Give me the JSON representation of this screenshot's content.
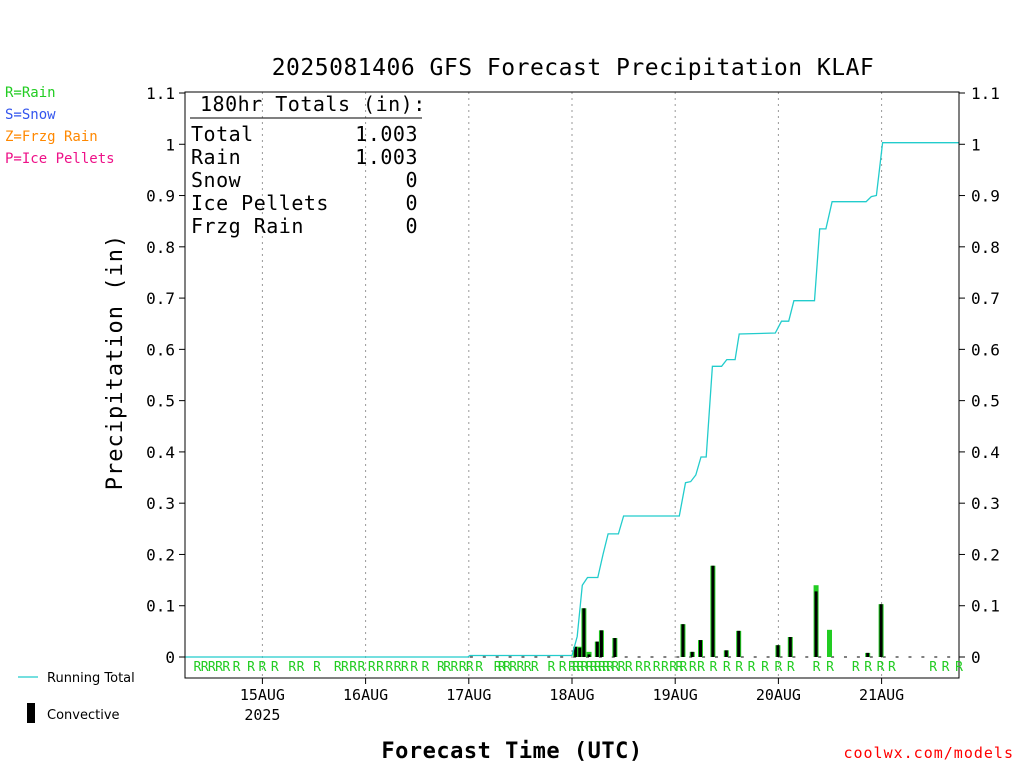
{
  "chart_data": {
    "type": "bar",
    "title": "2025081406 GFS Forecast Precipitation KLAF",
    "xlabel": "Forecast Time (UTC)",
    "ylabel": "Precipitation (in)",
    "ylim": [
      0,
      1.1
    ],
    "y_ticks": [
      "0",
      "0.1",
      "0.2",
      "0.3",
      "0.4",
      "0.5",
      "0.6",
      "0.7",
      "0.8",
      "0.9",
      "1",
      "1.1"
    ],
    "x_range_days": [
      "2025-08-14 06Z",
      "2025-08-21 18Z"
    ],
    "x_ticks": [
      {
        "label": "15AUG",
        "sublabel": "2025",
        "day": 15
      },
      {
        "label": "16AUG",
        "sublabel": "",
        "day": 16
      },
      {
        "label": "17AUG",
        "sublabel": "",
        "day": 17
      },
      {
        "label": "18AUG",
        "sublabel": "",
        "day": 18
      },
      {
        "label": "19AUG",
        "sublabel": "",
        "day": 19
      },
      {
        "label": "20AUG",
        "sublabel": "",
        "day": 20
      },
      {
        "label": "21AUG",
        "sublabel": "",
        "day": 21
      }
    ],
    "grid": "vertical dotted at day boundaries",
    "totals_box": {
      "title": "180hr Totals (in):",
      "rows": [
        {
          "label": "Total",
          "value": "1.003"
        },
        {
          "label": "Rain",
          "value": "1.003"
        },
        {
          "label": "Snow",
          "value": "0"
        },
        {
          "label": "Ice Pellets",
          "value": "0"
        },
        {
          "label": "Frzg Rain",
          "value": "0"
        }
      ]
    },
    "type_legend": [
      {
        "text": "R=Rain",
        "color": "#22cc22"
      },
      {
        "text": "S=Snow",
        "color": "#3355ee"
      },
      {
        "text": "Z=Frzg Rain",
        "color": "#ff8800"
      },
      {
        "text": "P=Ice Pellets",
        "color": "#ee1188"
      }
    ],
    "series_legend": [
      {
        "name": "Running Total",
        "color": "#22cccc"
      },
      {
        "name": "Convective",
        "color": "#000000"
      }
    ],
    "running_total": [
      [
        14.25,
        0
      ],
      [
        16.99,
        0
      ],
      [
        17.01,
        0.003
      ],
      [
        18.0,
        0.003
      ],
      [
        18.05,
        0.04
      ],
      [
        18.1,
        0.14
      ],
      [
        18.15,
        0.155
      ],
      [
        18.25,
        0.155
      ],
      [
        18.3,
        0.2
      ],
      [
        18.35,
        0.24
      ],
      [
        18.45,
        0.24
      ],
      [
        18.5,
        0.275
      ],
      [
        19.04,
        0.275
      ],
      [
        19.1,
        0.34
      ],
      [
        19.15,
        0.342
      ],
      [
        19.2,
        0.355
      ],
      [
        19.25,
        0.39
      ],
      [
        19.3,
        0.39
      ],
      [
        19.36,
        0.567
      ],
      [
        19.45,
        0.567
      ],
      [
        19.5,
        0.58
      ],
      [
        19.58,
        0.58
      ],
      [
        19.62,
        0.63
      ],
      [
        19.97,
        0.632
      ],
      [
        20.03,
        0.655
      ],
      [
        20.1,
        0.655
      ],
      [
        20.15,
        0.695
      ],
      [
        20.35,
        0.695
      ],
      [
        20.4,
        0.835
      ],
      [
        20.46,
        0.835
      ],
      [
        20.52,
        0.888
      ],
      [
        20.85,
        0.888
      ],
      [
        20.9,
        0.898
      ],
      [
        20.95,
        0.9
      ],
      [
        21.01,
        1.003
      ],
      [
        21.75,
        1.003
      ]
    ],
    "bars": [
      {
        "t": 18.04,
        "total": 0.02,
        "conv": 0.02
      },
      {
        "t": 18.08,
        "total": 0.02,
        "conv": 0.018
      },
      {
        "t": 18.12,
        "total": 0.095,
        "conv": 0.095
      },
      {
        "t": 18.17,
        "total": 0.01,
        "conv": 0.005
      },
      {
        "t": 18.25,
        "total": 0.03,
        "conv": 0.03
      },
      {
        "t": 18.29,
        "total": 0.052,
        "conv": 0.052
      },
      {
        "t": 18.42,
        "total": 0.037,
        "conv": 0.037
      },
      {
        "t": 19.08,
        "total": 0.064,
        "conv": 0.064
      },
      {
        "t": 19.17,
        "total": 0.01,
        "conv": 0.01
      },
      {
        "t": 19.25,
        "total": 0.033,
        "conv": 0.033
      },
      {
        "t": 19.37,
        "total": 0.178,
        "conv": 0.178
      },
      {
        "t": 19.5,
        "total": 0.013,
        "conv": 0.013
      },
      {
        "t": 19.62,
        "total": 0.051,
        "conv": 0.051
      },
      {
        "t": 20.0,
        "total": 0.023,
        "conv": 0.023
      },
      {
        "t": 20.12,
        "total": 0.039,
        "conv": 0.039
      },
      {
        "t": 20.37,
        "total": 0.14,
        "conv": 0.128
      },
      {
        "t": 20.5,
        "total": 0.053,
        "conv": 0.0
      },
      {
        "t": 20.87,
        "total": 0.008,
        "conv": 0.008
      },
      {
        "t": 21.0,
        "total": 0.103,
        "conv": 0.103
      }
    ],
    "ptype_marks": {
      "letter": "R",
      "times": [
        14.37,
        14.44,
        14.51,
        14.58,
        14.65,
        14.75,
        14.89,
        15.0,
        15.12,
        15.29,
        15.37,
        15.53,
        15.73,
        15.8,
        15.88,
        15.96,
        16.06,
        16.14,
        16.23,
        16.31,
        16.38,
        16.47,
        16.58,
        16.73,
        16.79,
        16.86,
        16.94,
        17.01,
        17.1,
        17.28,
        17.32,
        17.37,
        17.43,
        17.5,
        17.57,
        17.64,
        17.8,
        17.91,
        18.0,
        18.04,
        18.08,
        18.12,
        18.17,
        18.21,
        18.25,
        18.29,
        18.33,
        18.37,
        18.42,
        18.48,
        18.55,
        18.65,
        18.73,
        18.82,
        18.9,
        18.98,
        19.04,
        19.08,
        19.17,
        19.25,
        19.37,
        19.5,
        19.62,
        19.74,
        19.87,
        20.0,
        20.12,
        20.37,
        20.5,
        20.75,
        20.87,
        20.99,
        21.1,
        21.5,
        21.62,
        21.75
      ]
    }
  },
  "credit": "coolwx.com/models"
}
